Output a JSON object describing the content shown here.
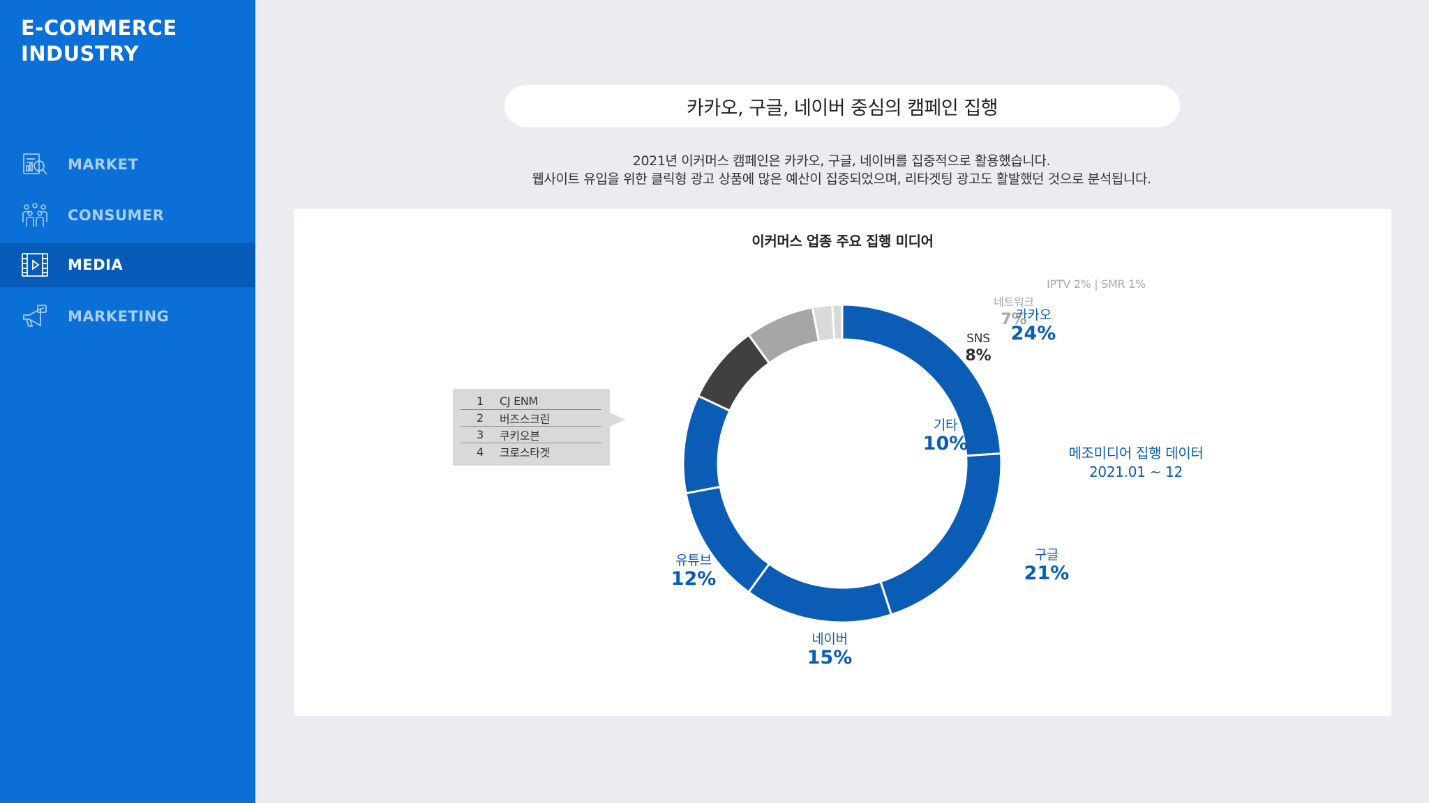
{
  "sidebar": {
    "brand_line1": "E-COMMERCE",
    "brand_line2": "INDUSTRY",
    "items": [
      {
        "label": "MARKET",
        "icon": "market-report-icon",
        "active": false
      },
      {
        "label": "CONSUMER",
        "icon": "consumer-group-icon",
        "active": false
      },
      {
        "label": "MEDIA",
        "icon": "media-play-icon",
        "active": true
      },
      {
        "label": "MARKETING",
        "icon": "megaphone-icon",
        "active": false
      }
    ]
  },
  "main": {
    "title": "카카오, 구글, 네이버 중심의 캠페인 집행",
    "desc_line1": "2021년 이커머스 캠페인은 카카오, 구글, 네이버를 집중적으로 활용했습니다.",
    "desc_line2": "웹사이트 유입을 위한 클릭형 광고 상품에 많은 예산이 집중되었으며, 리타겟팅 광고도 활발했던 것으로 분석됩니다."
  },
  "colors": {
    "sidebar_bg": "#0a6fd6",
    "sidebar_active": "#075bb8",
    "primary_blue": "#0a5cb5",
    "dark_gray": "#404040",
    "mid_gray": "#a6a6a6",
    "light_gray": "#d9d9d9"
  },
  "chart_data": {
    "type": "pie",
    "title": "이커머스 업종 주요 집행 미디어",
    "center_line1": "메조미디어 집행 데이터",
    "center_line2": "2021.01 ~ 12",
    "slices": [
      {
        "name": "카카오",
        "value": 24,
        "label": "24%",
        "color": "#0a5cb5"
      },
      {
        "name": "구글",
        "value": 21,
        "label": "21%",
        "color": "#0a5cb5"
      },
      {
        "name": "네이버",
        "value": 15,
        "label": "15%",
        "color": "#0a5cb5"
      },
      {
        "name": "유튜브",
        "value": 12,
        "label": "12%",
        "color": "#0a5cb5"
      },
      {
        "name": "기타",
        "value": 10,
        "label": "10%",
        "color": "#0a5cb5"
      },
      {
        "name": "SNS",
        "value": 8,
        "label": "8%",
        "color": "#404040"
      },
      {
        "name": "네트워크",
        "value": 7,
        "label": "7%",
        "color": "#a6a6a6"
      },
      {
        "name": "IPTV",
        "value": 2,
        "label": "2%",
        "color": "#d9d9d9"
      },
      {
        "name": "SMR",
        "value": 1,
        "label": "1%",
        "color": "#d9d9d9"
      }
    ],
    "small_label": "IPTV 2% | SMR 1%",
    "callout": {
      "rows": [
        {
          "num": "1",
          "name": "CJ ENM"
        },
        {
          "num": "2",
          "name": "버즈스크린"
        },
        {
          "num": "3",
          "name": "쿠키오븐"
        },
        {
          "num": "4",
          "name": "크로스타겟"
        }
      ]
    }
  }
}
